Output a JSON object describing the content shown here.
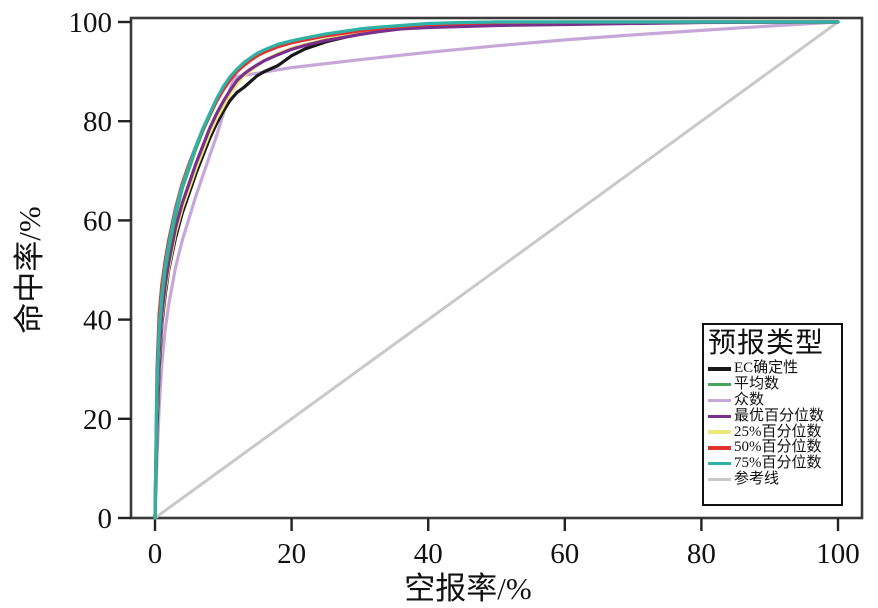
{
  "figure": {
    "background": "#ffffff",
    "spine_color": "#3a3a3a",
    "text_color": "#111111"
  },
  "chart_data": {
    "type": "line",
    "title": "",
    "xlabel": "空报率/%",
    "ylabel": "命中率/%",
    "xlim": [
      0,
      100
    ],
    "ylim": [
      0,
      100
    ],
    "x_ticks": [
      0,
      20,
      40,
      60,
      80,
      100
    ],
    "y_ticks": [
      0,
      20,
      40,
      60,
      80,
      100
    ],
    "grid": false,
    "legend_title": "预报类型",
    "legend_position": "lower right",
    "draw_order": [
      7,
      2,
      0,
      4,
      3,
      1,
      5,
      6
    ],
    "series": [
      {
        "name": "EC确定性",
        "slug": "ec-deterministic",
        "color": "#191919",
        "width": 3.2,
        "points": [
          [
            0,
            0
          ],
          [
            0.3,
            18
          ],
          [
            0.6,
            30
          ],
          [
            1,
            39
          ],
          [
            1.5,
            45
          ],
          [
            2,
            50
          ],
          [
            3,
            56.5
          ],
          [
            4,
            61.5
          ],
          [
            5,
            65.5
          ],
          [
            6,
            69.5
          ],
          [
            7,
            73
          ],
          [
            8,
            76.5
          ],
          [
            9,
            79.5
          ],
          [
            10,
            82
          ],
          [
            11,
            84.2
          ],
          [
            12,
            85.8
          ],
          [
            13,
            86.8
          ],
          [
            14,
            88
          ],
          [
            15,
            89.2
          ],
          [
            16,
            90
          ],
          [
            17,
            90.6
          ],
          [
            18,
            91.2
          ],
          [
            19,
            92.2
          ],
          [
            20,
            93.2
          ],
          [
            22,
            94.6
          ],
          [
            25,
            96
          ],
          [
            28,
            97
          ],
          [
            30,
            97.5
          ],
          [
            33,
            98.2
          ],
          [
            36,
            98.8
          ],
          [
            40,
            99.3
          ],
          [
            45,
            99.6
          ],
          [
            50,
            99.8
          ],
          [
            60,
            99.9
          ],
          [
            80,
            100
          ],
          [
            100,
            100
          ]
        ]
      },
      {
        "name": "平均数",
        "slug": "mean",
        "color": "#44a85c",
        "width": 3.2,
        "points": [
          [
            0,
            0
          ],
          [
            0.3,
            26
          ],
          [
            0.6,
            37
          ],
          [
            1,
            44
          ],
          [
            1.5,
            50
          ],
          [
            2,
            54
          ],
          [
            3,
            61
          ],
          [
            4,
            66.5
          ],
          [
            5,
            70.5
          ],
          [
            6,
            74.5
          ],
          [
            7,
            78
          ],
          [
            8,
            81
          ],
          [
            9,
            84
          ],
          [
            10,
            86.5
          ],
          [
            11,
            88.5
          ],
          [
            12,
            90
          ],
          [
            13,
            91.3
          ],
          [
            14,
            92.3
          ],
          [
            15,
            93.2
          ],
          [
            16,
            94
          ],
          [
            18,
            95.1
          ],
          [
            20,
            95.9
          ],
          [
            22,
            96.5
          ],
          [
            25,
            97.3
          ],
          [
            28,
            97.9
          ],
          [
            30,
            98.3
          ],
          [
            33,
            98.8
          ],
          [
            36,
            99.1
          ],
          [
            40,
            99.5
          ],
          [
            45,
            99.8
          ],
          [
            50,
            100
          ],
          [
            100,
            100
          ]
        ]
      },
      {
        "name": "众数",
        "slug": "mode",
        "color": "#c6a7d8",
        "width": 3.2,
        "points": [
          [
            0,
            0
          ],
          [
            0.3,
            12
          ],
          [
            0.6,
            22
          ],
          [
            1,
            31
          ],
          [
            1.5,
            38
          ],
          [
            2,
            43
          ],
          [
            3,
            50.5
          ],
          [
            4,
            56
          ],
          [
            5,
            60.5
          ],
          [
            6,
            65
          ],
          [
            7,
            69
          ],
          [
            8,
            73
          ],
          [
            9,
            77
          ],
          [
            10,
            81.5
          ],
          [
            10.5,
            84
          ],
          [
            11,
            86.5
          ],
          [
            11.5,
            88.2
          ],
          [
            12,
            89
          ],
          [
            20,
            90.8
          ],
          [
            30,
            92.4
          ],
          [
            40,
            93.9
          ],
          [
            50,
            95.2
          ],
          [
            60,
            96.4
          ],
          [
            70,
            97.4
          ],
          [
            80,
            98.3
          ],
          [
            90,
            99.2
          ],
          [
            100,
            100
          ]
        ]
      },
      {
        "name": "最优百分位数",
        "slug": "best-percentile",
        "color": "#7b2e8c",
        "width": 3.2,
        "points": [
          [
            0,
            0
          ],
          [
            0.3,
            22
          ],
          [
            0.6,
            33
          ],
          [
            1,
            41
          ],
          [
            1.5,
            47
          ],
          [
            2,
            51.5
          ],
          [
            3,
            58.5
          ],
          [
            4,
            63.5
          ],
          [
            5,
            67.5
          ],
          [
            6,
            71.5
          ],
          [
            7,
            75
          ],
          [
            8,
            78.5
          ],
          [
            9,
            81.5
          ],
          [
            10,
            84
          ],
          [
            11,
            86.2
          ],
          [
            12,
            88.2
          ],
          [
            13,
            89.5
          ],
          [
            14,
            90.5
          ],
          [
            15,
            91.4
          ],
          [
            16,
            92.2
          ],
          [
            18,
            93.4
          ],
          [
            20,
            94.5
          ],
          [
            22,
            95.3
          ],
          [
            25,
            96.3
          ],
          [
            28,
            97
          ],
          [
            30,
            97.5
          ],
          [
            33,
            98.1
          ],
          [
            36,
            98.6
          ],
          [
            40,
            98.9
          ],
          [
            50,
            99.3
          ],
          [
            60,
            99.5
          ],
          [
            80,
            99.9
          ],
          [
            100,
            100
          ]
        ]
      },
      {
        "name": "25%百分位数",
        "slug": "percentile-25",
        "color": "#ece878",
        "width": 3.2,
        "points": [
          [
            0,
            0
          ],
          [
            0.3,
            21
          ],
          [
            0.6,
            32
          ],
          [
            1,
            40
          ],
          [
            1.5,
            46
          ],
          [
            2,
            50.5
          ],
          [
            3,
            57.5
          ],
          [
            4,
            62.5
          ],
          [
            5,
            66.5
          ],
          [
            6,
            70.5
          ],
          [
            7,
            74
          ],
          [
            8,
            77.5
          ],
          [
            9,
            80.5
          ],
          [
            10,
            83
          ],
          [
            11,
            85.5
          ],
          [
            12,
            87.5
          ],
          [
            13,
            89.2
          ],
          [
            14,
            90.2
          ],
          [
            15,
            91.2
          ],
          [
            16,
            92.2
          ],
          [
            18,
            93.6
          ],
          [
            20,
            94.7
          ],
          [
            22,
            95.5
          ],
          [
            25,
            96.5
          ],
          [
            28,
            97.3
          ],
          [
            30,
            97.8
          ],
          [
            33,
            98.4
          ],
          [
            36,
            98.9
          ],
          [
            40,
            99.3
          ],
          [
            45,
            99.6
          ],
          [
            50,
            99.8
          ],
          [
            60,
            100
          ],
          [
            100,
            100
          ]
        ]
      },
      {
        "name": "50%百分位数",
        "slug": "percentile-50",
        "color": "#e23230",
        "width": 3.2,
        "points": [
          [
            0,
            0
          ],
          [
            0.3,
            30
          ],
          [
            0.6,
            41
          ],
          [
            1,
            47
          ],
          [
            1.5,
            52
          ],
          [
            2,
            56
          ],
          [
            3,
            62.5
          ],
          [
            4,
            67.5
          ],
          [
            5,
            71.5
          ],
          [
            6,
            75
          ],
          [
            7,
            78.3
          ],
          [
            8,
            81.3
          ],
          [
            9,
            84
          ],
          [
            10,
            86.3
          ],
          [
            11,
            88.3
          ],
          [
            12,
            90
          ],
          [
            13,
            91.2
          ],
          [
            14,
            92.3
          ],
          [
            15,
            93.2
          ],
          [
            16,
            93.9
          ],
          [
            18,
            95
          ],
          [
            20,
            95.8
          ],
          [
            22,
            96.4
          ],
          [
            25,
            97.2
          ],
          [
            28,
            97.8
          ],
          [
            30,
            98.2
          ],
          [
            33,
            98.7
          ],
          [
            36,
            99.1
          ],
          [
            40,
            99.5
          ],
          [
            45,
            99.7
          ],
          [
            50,
            99.9
          ],
          [
            60,
            100
          ],
          [
            100,
            100
          ]
        ]
      },
      {
        "name": "75%百分位数",
        "slug": "percentile-75",
        "color": "#2eb2a7",
        "width": 3.2,
        "points": [
          [
            0,
            0
          ],
          [
            0.3,
            27
          ],
          [
            0.6,
            38
          ],
          [
            1,
            45
          ],
          [
            1.5,
            51
          ],
          [
            2,
            55
          ],
          [
            3,
            62
          ],
          [
            4,
            67
          ],
          [
            5,
            71
          ],
          [
            6,
            75
          ],
          [
            7,
            78.5
          ],
          [
            8,
            81.5
          ],
          [
            9,
            84.5
          ],
          [
            10,
            87
          ],
          [
            11,
            89
          ],
          [
            12,
            90.5
          ],
          [
            13,
            91.8
          ],
          [
            14,
            92.8
          ],
          [
            15,
            93.7
          ],
          [
            16,
            94.4
          ],
          [
            18,
            95.5
          ],
          [
            20,
            96.2
          ],
          [
            22,
            96.8
          ],
          [
            25,
            97.6
          ],
          [
            28,
            98.2
          ],
          [
            30,
            98.6
          ],
          [
            33,
            99
          ],
          [
            36,
            99.3
          ],
          [
            40,
            99.7
          ],
          [
            45,
            99.9
          ],
          [
            50,
            100
          ],
          [
            100,
            100
          ]
        ]
      },
      {
        "name": "参考线",
        "slug": "reference-line",
        "color": "#c9c9c9",
        "width": 3,
        "points": [
          [
            0,
            0
          ],
          [
            100,
            100
          ]
        ]
      }
    ]
  }
}
